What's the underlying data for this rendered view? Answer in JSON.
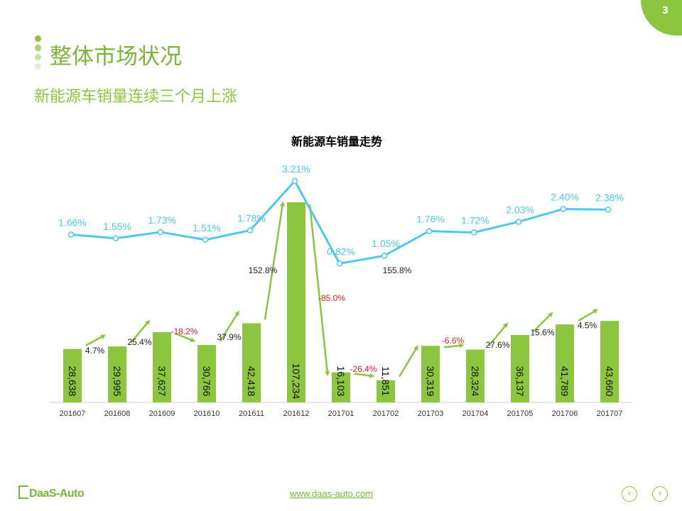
{
  "page_number": "3",
  "title": "整体市场状况",
  "subtitle": "新能源车销量连续三个月上涨",
  "footer": {
    "logo": "DaaS-Auto",
    "url": "www.daas-auto.com"
  },
  "colors": {
    "accent": "#8cc63f",
    "line": "#4fc8f0",
    "negative": "#e02020",
    "text": "#333333"
  },
  "icons": {
    "prev": "chevron-left-icon",
    "next": "chevron-right-icon"
  },
  "chart_data": {
    "type": "bar",
    "title": "新能源车销量走势",
    "categories": [
      "201607",
      "201608",
      "201609",
      "201610",
      "201611",
      "201612",
      "201701",
      "201702",
      "201703",
      "201704",
      "201705",
      "201706",
      "201707"
    ],
    "series": [
      {
        "values": [
          28638,
          29995,
          37627,
          30766,
          42418,
          107234,
          16103,
          11851,
          30319,
          28324,
          36137,
          41789,
          43660
        ],
        "labels": [
          "28,638",
          "29,995",
          "37,627",
          "30,766",
          "42,418",
          "107,234",
          "16,103",
          "11,851",
          "30,319",
          "28,324",
          "36,137",
          "41,789",
          "43,660"
        ]
      },
      {
        "type": "line",
        "values": [
          1.66,
          1.55,
          1.73,
          1.51,
          1.78,
          3.21,
          0.82,
          1.05,
          1.76,
          1.72,
          2.03,
          2.4,
          2.38
        ],
        "labels": [
          "1.66%",
          "1.55%",
          "1.73%",
          "1.51%",
          "1.78%",
          "3.21%",
          "0.82%",
          "1.05%",
          "1.76%",
          "1.72%",
          "2.03%",
          "2.40%",
          "2.38%"
        ]
      }
    ],
    "growth": [
      {
        "value": 4.7,
        "label": "4.7%"
      },
      {
        "value": 25.4,
        "label": "25.4%"
      },
      {
        "value": -18.2,
        "label": "-18.2%"
      },
      {
        "value": 37.9,
        "label": "37.9%"
      },
      {
        "value": 152.8,
        "label": "152.8%"
      },
      {
        "value": -85.0,
        "label": "-85.0%"
      },
      {
        "value": -26.4,
        "label": "-26.4%"
      },
      {
        "value": 155.8,
        "label": "155.8%"
      },
      {
        "value": -6.6,
        "label": "-6.6%"
      },
      {
        "value": 27.6,
        "label": "27.6%"
      },
      {
        "value": 15.6,
        "label": "15.6%"
      },
      {
        "value": 4.5,
        "label": "4.5%"
      }
    ],
    "grid": false,
    "legend": "none"
  }
}
